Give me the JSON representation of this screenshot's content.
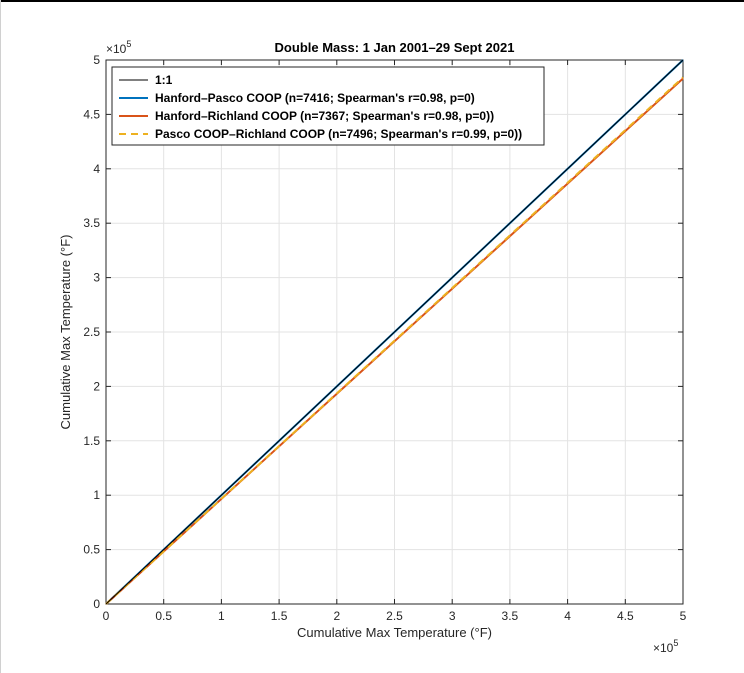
{
  "chart_data": {
    "type": "line",
    "title": "Double Mass: 1 Jan 2001–29 Sept 2021",
    "xlabel": "Cumulative Max Temperature (°F)",
    "ylabel": "Cumulative Max Temperature (°F)",
    "xlim": [
      0,
      5
    ],
    "ylim": [
      0,
      5
    ],
    "x_ticks": [
      0,
      0.5,
      1,
      1.5,
      2,
      2.5,
      3,
      3.5,
      4,
      4.5,
      5
    ],
    "y_ticks": [
      0,
      0.5,
      1,
      1.5,
      2,
      2.5,
      3,
      3.5,
      4,
      4.5,
      5
    ],
    "x_tick_labels": [
      "0",
      "0.5",
      "1",
      "1.5",
      "2",
      "2.5",
      "3",
      "3.5",
      "4",
      "4.5",
      "5"
    ],
    "y_tick_labels": [
      "0",
      "0.5",
      "1",
      "1.5",
      "2",
      "2.5",
      "3",
      "3.5",
      "4",
      "4.5",
      "5"
    ],
    "x_exponent_base": "×10",
    "x_exponent_power": "5",
    "y_exponent_base": "×10",
    "y_exponent_power": "5",
    "grid": true,
    "legend_position": "top-left",
    "series": [
      {
        "name": "1:1",
        "color": "#000000",
        "dash": "solid",
        "x": [
          0,
          5
        ],
        "y": [
          0,
          5
        ]
      },
      {
        "name": "Hanford–Pasco COOP (n=7416; Spearman's r=0.98, p=0)",
        "color": "#0072BD",
        "dash": "solid",
        "x": [
          0,
          5
        ],
        "y": [
          0,
          5
        ]
      },
      {
        "name": "Hanford–Richland COOP (n=7367; Spearman's r=0.98, p=0))",
        "color": "#D95319",
        "dash": "solid",
        "x": [
          0,
          5
        ],
        "y": [
          0,
          4.83
        ]
      },
      {
        "name": "Pasco COOP–Richland COOP (n=7496; Spearman's r=0.99, p=0))",
        "color": "#EDB120",
        "dash": "dashed",
        "x": [
          0,
          5
        ],
        "y": [
          0,
          4.84
        ]
      }
    ]
  }
}
